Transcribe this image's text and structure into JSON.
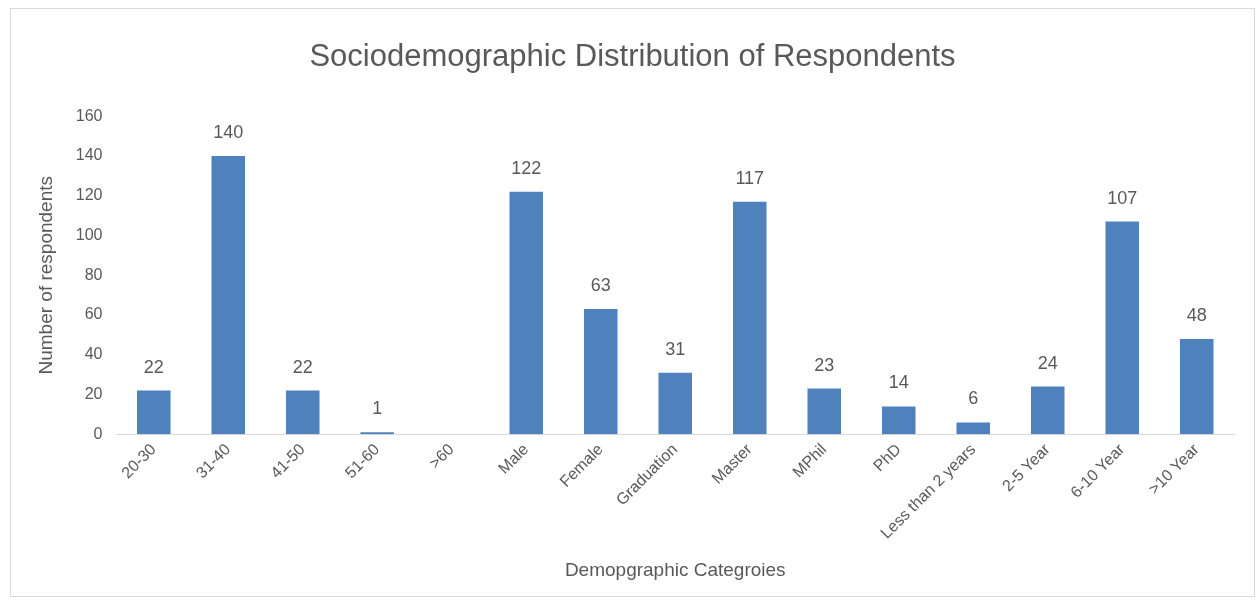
{
  "chart_data": {
    "type": "bar",
    "title": "Sociodemographic Distribution of Respondents",
    "xlabel": "Demopgraphic Categroies",
    "ylabel": "Number of respondents",
    "categories": [
      "20-30",
      "31-40",
      "41-50",
      "51-60",
      ">60",
      "Male",
      "Female",
      "Graduation",
      "Master",
      "MPhil",
      "PhD",
      "Less than 2 years",
      "2-5 Year",
      "6-10 Year",
      ">10 Year"
    ],
    "values": [
      22,
      140,
      22,
      1,
      0,
      122,
      63,
      31,
      117,
      23,
      14,
      6,
      24,
      107,
      48
    ],
    "value_labels": [
      "22",
      "140",
      "22",
      "1",
      null,
      "122",
      "63",
      "31",
      "117",
      "23",
      "14",
      "6",
      "24",
      "107",
      "48"
    ],
    "color": "#4f81bd",
    "ylim": [
      0,
      160
    ],
    "yticks": [
      0,
      20,
      40,
      60,
      80,
      100,
      120,
      140,
      160
    ],
    "grid": false,
    "legend": false
  }
}
